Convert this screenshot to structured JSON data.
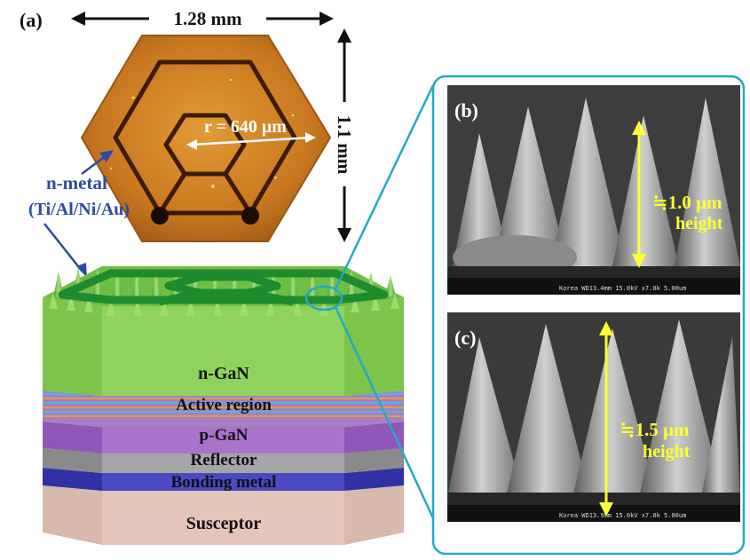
{
  "panels": {
    "a": "(a)",
    "b": "(b)",
    "c": "(c)"
  },
  "dimensions": {
    "width": "1.28 mm",
    "height": "1.1 mm",
    "radius": "r = 640 μm"
  },
  "annotations": {
    "n_metal_line1": "n-metal",
    "n_metal_line2": "(Ti/Al/Ni/Au)",
    "b_height_value": "≒1.0 μm",
    "b_height_word": "height",
    "c_height_value": "≒1.5 μm",
    "c_height_word": "height"
  },
  "layers": [
    {
      "label": "n-GaN",
      "color": "#8ed34a"
    },
    {
      "label": "Active region",
      "color": "#a97fc8"
    },
    {
      "label": "p-GaN",
      "color": "#a46ec4"
    },
    {
      "label": "Reflector",
      "color": "#9a9a9a"
    },
    {
      "label": "Bonding metal",
      "color": "#3c3cb4"
    },
    {
      "label": "Susceptor",
      "color": "#e0c3b6"
    }
  ],
  "sem_footer": {
    "b": "Korea WD13.4mm 15.0kV x7.0k 5.00um",
    "c": "Korea WD13.9mm 15.0kV x7.0k 5.00um"
  },
  "colors": {
    "accent_cyan": "#23a9c7",
    "arrow_blue": "#2c4aa8",
    "sem_label": "#ffff33",
    "chip_orange": "#c8761f"
  }
}
